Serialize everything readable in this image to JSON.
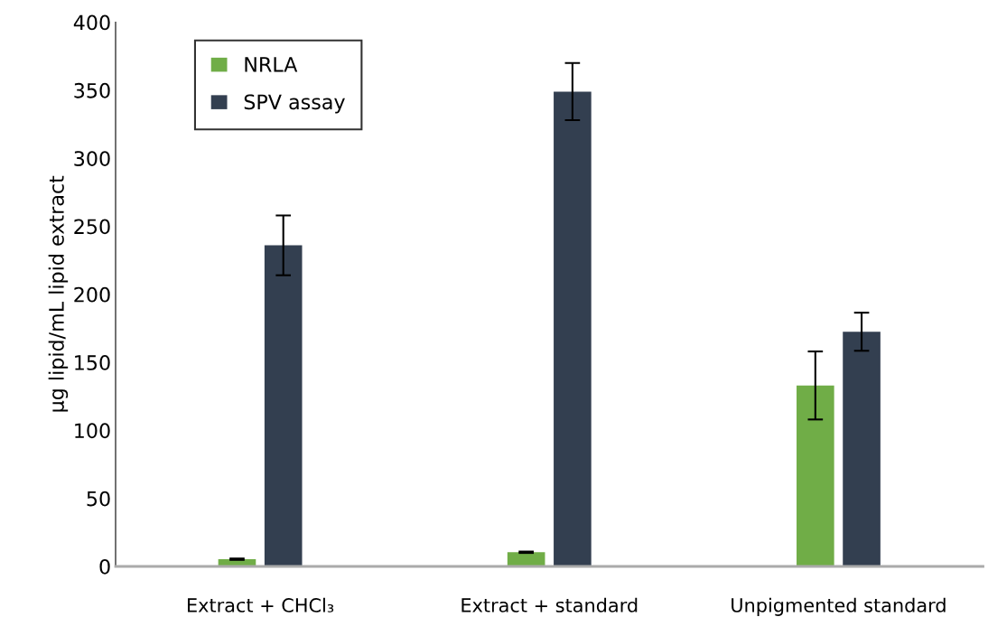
{
  "chart_data": {
    "type": "bar",
    "ylabel": "µg lipid/mL lipid extract",
    "categories": [
      "Extract + CHCl₃",
      "Extract + standard",
      "Unpigmented standard"
    ],
    "series": [
      {
        "name": "NRLA",
        "color": "#70ad47",
        "values": [
          5.3,
          10.4,
          133
        ],
        "errors": [
          0.5,
          0.5,
          25
        ]
      },
      {
        "name": "SPV assay",
        "color": "#333f50",
        "values": [
          236,
          349,
          172.5
        ],
        "errors": [
          22,
          21,
          14
        ]
      }
    ],
    "ylim": [
      0,
      400
    ],
    "yticks": [
      0,
      50,
      100,
      150,
      200,
      250,
      300,
      350,
      400
    ],
    "grid": false,
    "legend": "top left"
  }
}
